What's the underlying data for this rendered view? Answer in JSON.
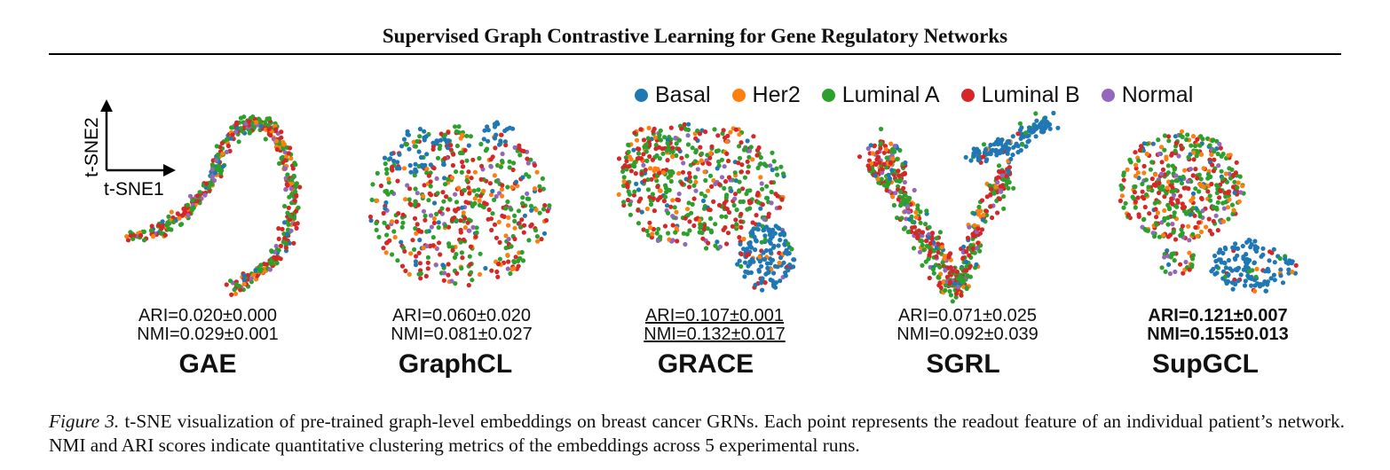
{
  "running_head": "Supervised Graph Contrastive Learning for Gene Regulatory Networks",
  "legend": [
    {
      "label": "Basal",
      "color": "#1f77b4"
    },
    {
      "label": "Her2",
      "color": "#ff7f0e"
    },
    {
      "label": "Luminal A",
      "color": "#2ca02c"
    },
    {
      "label": "Luminal B",
      "color": "#d62728"
    },
    {
      "label": "Normal",
      "color": "#9467bd"
    }
  ],
  "axes": {
    "x": "t-SNE1",
    "y": "t-SNE2"
  },
  "panels": [
    {
      "method": "GAE",
      "ari": "ARI=0.020±0.000",
      "nmi": "NMI=0.029±0.001"
    },
    {
      "method": "GraphCL",
      "ari": "ARI=0.060±0.020",
      "nmi": "NMI=0.081±0.027"
    },
    {
      "method": "GRACE",
      "ari": "ARI=0.107±0.001",
      "nmi": "NMI=0.132±0.017"
    },
    {
      "method": "SGRL",
      "ari": "ARI=0.071±0.025",
      "nmi": "NMI=0.092±0.039"
    },
    {
      "method": "SupGCL",
      "ari": "ARI=0.121±0.007",
      "nmi": "NMI=0.155±0.013"
    }
  ],
  "caption": {
    "label": "Figure 3.",
    "text": " t-SNE visualization of pre-trained graph-level embeddings on breast cancer GRNs. Each point represents the readout feature of an individual patient’s network. NMI and ARI scores indicate quantitative clustering metrics of the embeddings across 5 experimental runs."
  }
}
